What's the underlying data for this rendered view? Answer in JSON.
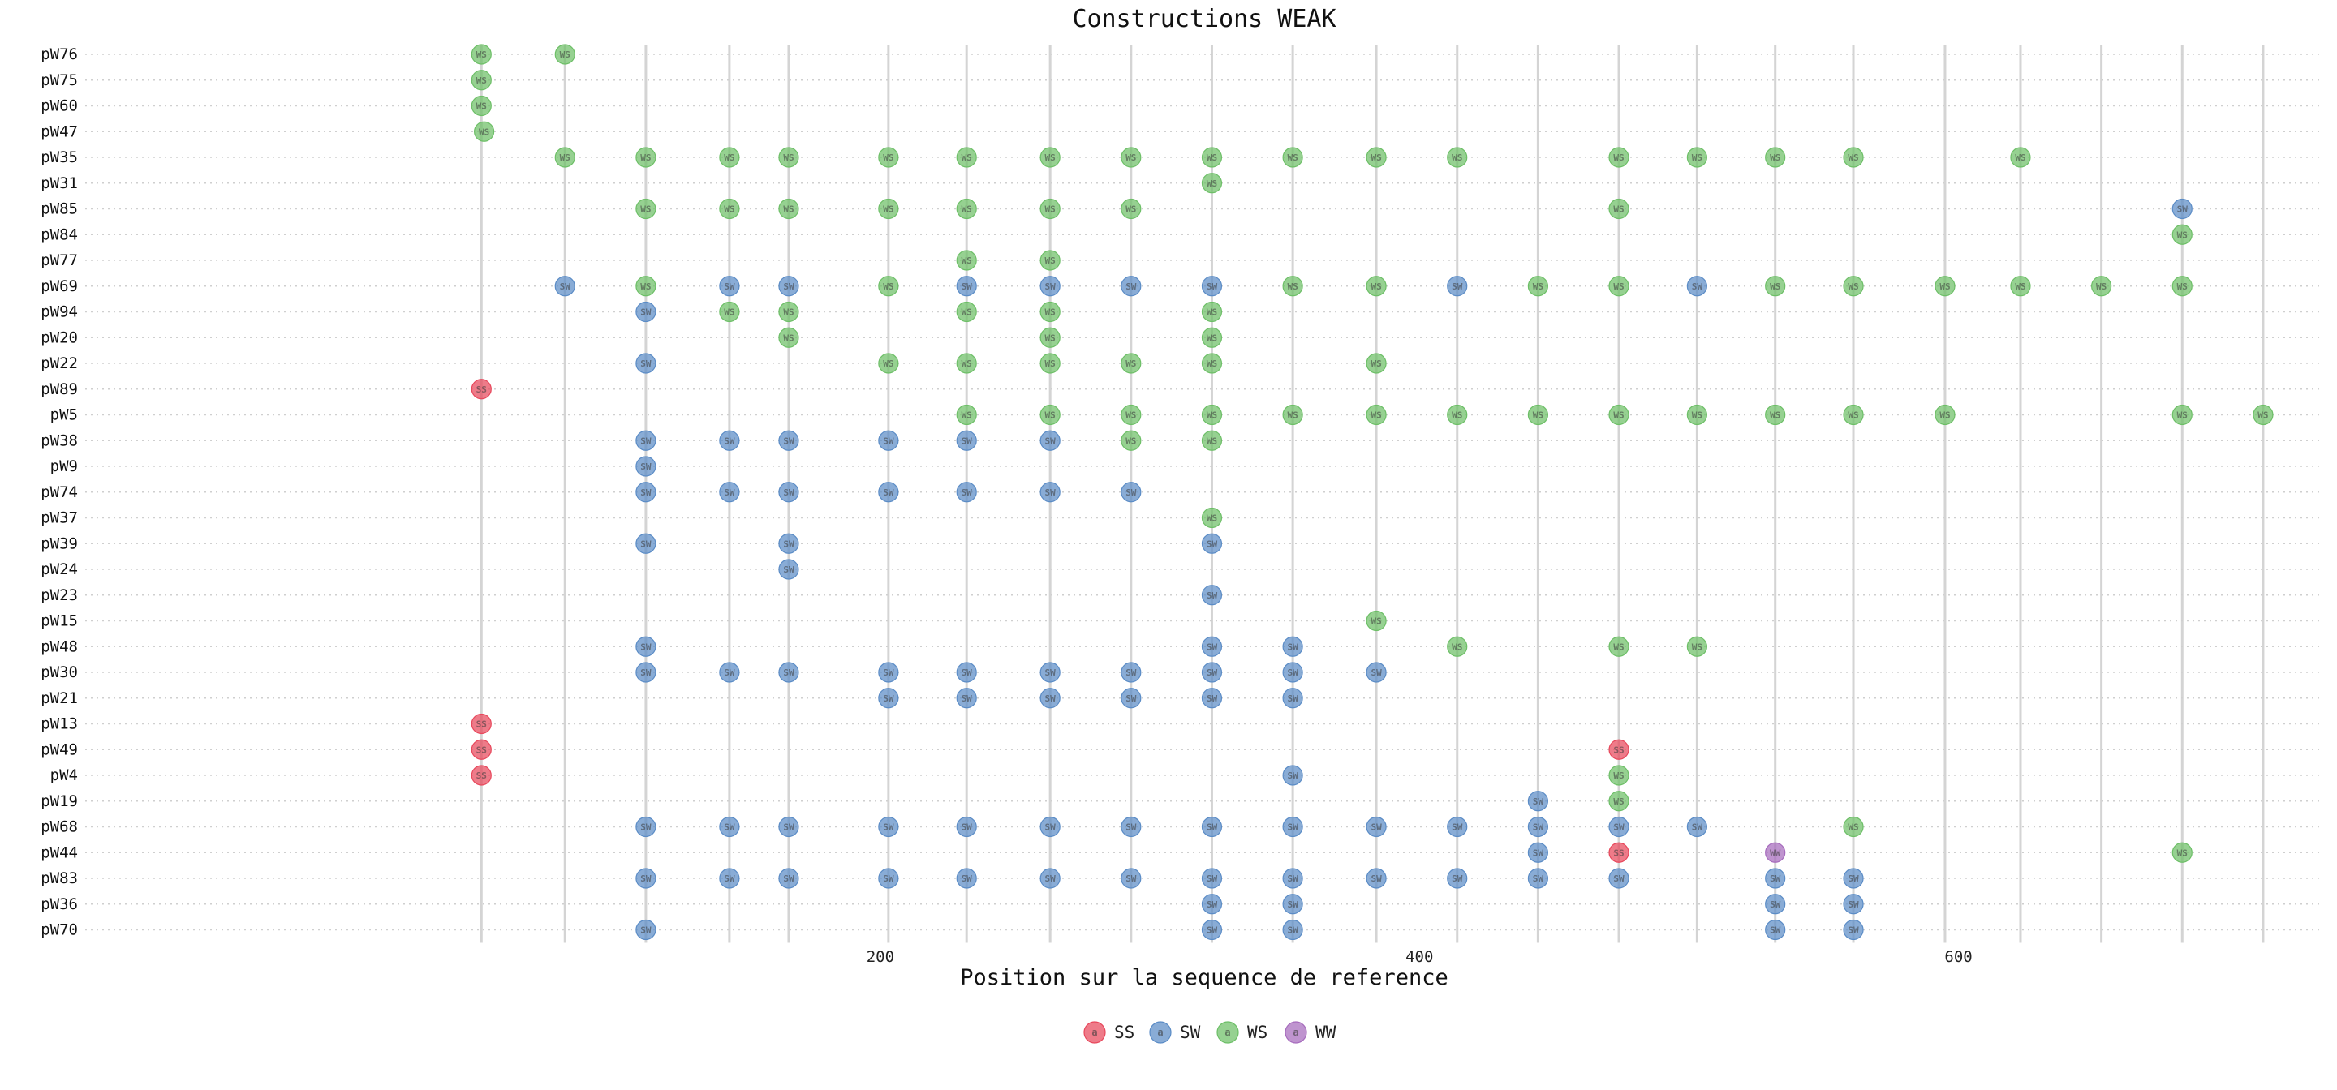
{
  "chart_data": {
    "type": "scatter",
    "title": "Constructions WEAK",
    "xlabel": "Position sur la sequence de reference",
    "ylabel": "",
    "xlim": [
      -95,
      735
    ],
    "xticks": [
      200,
      400,
      600
    ],
    "grid": "vertical lines at point positions, dotted horizontal lines per row",
    "legend_position": "bottom-center",
    "legend": [
      {
        "key": "SS",
        "label": "SS",
        "inner": "a",
        "color": "#e8485c"
      },
      {
        "key": "SW",
        "label": "SW",
        "inner": "a",
        "color": "#5b8cc6"
      },
      {
        "key": "WS",
        "label": "WS",
        "inner": "a",
        "color": "#6dbf67"
      },
      {
        "key": "WW",
        "label": "WW",
        "inner": "a",
        "color": "#a66bbd"
      }
    ],
    "categories": [
      "pW76",
      "pW75",
      "pW60",
      "pW47",
      "pW35",
      "pW31",
      "pW85",
      "pW84",
      "pW77",
      "pW69",
      "pW94",
      "pW20",
      "pW22",
      "pW89",
      "pW5",
      "pW38",
      "pW9",
      "pW74",
      "pW37",
      "pW39",
      "pW24",
      "pW23",
      "pW15",
      "pW48",
      "pW30",
      "pW21",
      "pW13",
      "pW49",
      "pW4",
      "pW19",
      "pW68",
      "pW44",
      "pW83",
      "pW36",
      "pW70"
    ],
    "positions": [
      52,
      83,
      113,
      144,
      166,
      203,
      232,
      263,
      293,
      323,
      353,
      384,
      414,
      444,
      474,
      503,
      532,
      561,
      595,
      623,
      653,
      683,
      713
    ],
    "rows": [
      {
        "name": "pW76",
        "points": [
          [
            52,
            "WS"
          ],
          [
            83,
            "WS"
          ]
        ]
      },
      {
        "name": "pW75",
        "points": [
          [
            52,
            "WS"
          ]
        ]
      },
      {
        "name": "pW60",
        "points": [
          [
            52,
            "WS"
          ]
        ]
      },
      {
        "name": "pW47",
        "points": [
          [
            53,
            "WS"
          ]
        ]
      },
      {
        "name": "pW35",
        "points": [
          [
            83,
            "WS"
          ],
          [
            113,
            "WS"
          ],
          [
            144,
            "WS"
          ],
          [
            166,
            "WS"
          ],
          [
            203,
            "WS"
          ],
          [
            232,
            "WS"
          ],
          [
            263,
            "WS"
          ],
          [
            293,
            "WS"
          ],
          [
            323,
            "WS"
          ],
          [
            353,
            "WS"
          ],
          [
            384,
            "WS"
          ],
          [
            414,
            "WS"
          ],
          [
            474,
            "WS"
          ],
          [
            503,
            "WS"
          ],
          [
            532,
            "WS"
          ],
          [
            561,
            "WS"
          ],
          [
            623,
            "WS"
          ]
        ]
      },
      {
        "name": "pW31",
        "points": [
          [
            323,
            "WS"
          ]
        ]
      },
      {
        "name": "pW85",
        "points": [
          [
            113,
            "WS"
          ],
          [
            144,
            "WS"
          ],
          [
            166,
            "WS"
          ],
          [
            203,
            "WS"
          ],
          [
            232,
            "WS"
          ],
          [
            263,
            "WS"
          ],
          [
            293,
            "WS"
          ],
          [
            474,
            "WS"
          ],
          [
            683,
            "SW"
          ]
        ]
      },
      {
        "name": "pW84",
        "points": [
          [
            683,
            "WS"
          ]
        ]
      },
      {
        "name": "pW77",
        "points": [
          [
            232,
            "WS"
          ],
          [
            263,
            "WS"
          ]
        ]
      },
      {
        "name": "pW69",
        "points": [
          [
            83,
            "SW"
          ],
          [
            113,
            "WS"
          ],
          [
            144,
            "SW"
          ],
          [
            166,
            "SW"
          ],
          [
            203,
            "WS"
          ],
          [
            232,
            "SW"
          ],
          [
            263,
            "SW"
          ],
          [
            293,
            "SW"
          ],
          [
            323,
            "SW"
          ],
          [
            353,
            "WS"
          ],
          [
            384,
            "WS"
          ],
          [
            414,
            "SW"
          ],
          [
            444,
            "WS"
          ],
          [
            474,
            "WS"
          ],
          [
            503,
            "SW"
          ],
          [
            532,
            "WS"
          ],
          [
            561,
            "WS"
          ],
          [
            595,
            "WS"
          ],
          [
            623,
            "WS"
          ],
          [
            653,
            "WS"
          ],
          [
            683,
            "WS"
          ]
        ]
      },
      {
        "name": "pW94",
        "points": [
          [
            113,
            "SW"
          ],
          [
            144,
            "WS"
          ],
          [
            166,
            "WS"
          ],
          [
            232,
            "WS"
          ],
          [
            263,
            "WS"
          ],
          [
            323,
            "WS"
          ]
        ]
      },
      {
        "name": "pW20",
        "points": [
          [
            166,
            "WS"
          ],
          [
            263,
            "WS"
          ],
          [
            323,
            "WS"
          ]
        ]
      },
      {
        "name": "pW22",
        "points": [
          [
            113,
            "SW"
          ],
          [
            203,
            "WS"
          ],
          [
            232,
            "WS"
          ],
          [
            263,
            "WS"
          ],
          [
            293,
            "WS"
          ],
          [
            323,
            "WS"
          ],
          [
            384,
            "WS"
          ]
        ]
      },
      {
        "name": "pW89",
        "points": [
          [
            52,
            "SS"
          ]
        ]
      },
      {
        "name": "pW5",
        "points": [
          [
            232,
            "WS"
          ],
          [
            263,
            "WS"
          ],
          [
            293,
            "WS"
          ],
          [
            323,
            "WS"
          ],
          [
            353,
            "WS"
          ],
          [
            384,
            "WS"
          ],
          [
            414,
            "WS"
          ],
          [
            444,
            "WS"
          ],
          [
            474,
            "WS"
          ],
          [
            503,
            "WS"
          ],
          [
            532,
            "WS"
          ],
          [
            561,
            "WS"
          ],
          [
            595,
            "WS"
          ],
          [
            683,
            "WS"
          ],
          [
            713,
            "WS"
          ]
        ]
      },
      {
        "name": "pW38",
        "points": [
          [
            113,
            "SW"
          ],
          [
            144,
            "SW"
          ],
          [
            166,
            "SW"
          ],
          [
            203,
            "SW"
          ],
          [
            232,
            "SW"
          ],
          [
            263,
            "SW"
          ],
          [
            293,
            "WS"
          ],
          [
            323,
            "WS"
          ]
        ]
      },
      {
        "name": "pW9",
        "points": [
          [
            113,
            "SW"
          ]
        ]
      },
      {
        "name": "pW74",
        "points": [
          [
            113,
            "SW"
          ],
          [
            144,
            "SW"
          ],
          [
            166,
            "SW"
          ],
          [
            203,
            "SW"
          ],
          [
            232,
            "SW"
          ],
          [
            263,
            "SW"
          ],
          [
            293,
            "SW"
          ]
        ]
      },
      {
        "name": "pW37",
        "points": [
          [
            323,
            "WS"
          ]
        ]
      },
      {
        "name": "pW39",
        "points": [
          [
            113,
            "SW"
          ],
          [
            166,
            "SW"
          ],
          [
            323,
            "SW"
          ]
        ]
      },
      {
        "name": "pW24",
        "points": [
          [
            166,
            "SW"
          ]
        ]
      },
      {
        "name": "pW23",
        "points": [
          [
            323,
            "SW"
          ]
        ]
      },
      {
        "name": "pW15",
        "points": [
          [
            384,
            "WS"
          ]
        ]
      },
      {
        "name": "pW48",
        "points": [
          [
            113,
            "SW"
          ],
          [
            323,
            "SW"
          ],
          [
            353,
            "SW"
          ],
          [
            414,
            "WS"
          ],
          [
            474,
            "WS"
          ],
          [
            503,
            "WS"
          ]
        ]
      },
      {
        "name": "pW30",
        "points": [
          [
            113,
            "SW"
          ],
          [
            144,
            "SW"
          ],
          [
            166,
            "SW"
          ],
          [
            203,
            "SW"
          ],
          [
            232,
            "SW"
          ],
          [
            263,
            "SW"
          ],
          [
            293,
            "SW"
          ],
          [
            323,
            "SW"
          ],
          [
            353,
            "SW"
          ],
          [
            384,
            "SW"
          ]
        ]
      },
      {
        "name": "pW21",
        "points": [
          [
            203,
            "SW"
          ],
          [
            232,
            "SW"
          ],
          [
            263,
            "SW"
          ],
          [
            293,
            "SW"
          ],
          [
            323,
            "SW"
          ],
          [
            353,
            "SW"
          ]
        ]
      },
      {
        "name": "pW13",
        "points": [
          [
            52,
            "SS"
          ]
        ]
      },
      {
        "name": "pW49",
        "points": [
          [
            52,
            "SS"
          ],
          [
            474,
            "SS"
          ]
        ]
      },
      {
        "name": "pW4",
        "points": [
          [
            52,
            "SS"
          ],
          [
            353,
            "SW"
          ],
          [
            474,
            "WS"
          ]
        ]
      },
      {
        "name": "pW19",
        "points": [
          [
            444,
            "SW"
          ],
          [
            474,
            "WS"
          ]
        ]
      },
      {
        "name": "pW68",
        "points": [
          [
            113,
            "SW"
          ],
          [
            144,
            "SW"
          ],
          [
            166,
            "SW"
          ],
          [
            203,
            "SW"
          ],
          [
            232,
            "SW"
          ],
          [
            263,
            "SW"
          ],
          [
            293,
            "SW"
          ],
          [
            323,
            "SW"
          ],
          [
            353,
            "SW"
          ],
          [
            384,
            "SW"
          ],
          [
            414,
            "SW"
          ],
          [
            444,
            "SW"
          ],
          [
            474,
            "SW"
          ],
          [
            503,
            "SW"
          ],
          [
            561,
            "WS"
          ]
        ]
      },
      {
        "name": "pW44",
        "points": [
          [
            444,
            "SW"
          ],
          [
            474,
            "SS"
          ],
          [
            532,
            "WW"
          ],
          [
            683,
            "WS"
          ]
        ]
      },
      {
        "name": "pW83",
        "points": [
          [
            113,
            "SW"
          ],
          [
            144,
            "SW"
          ],
          [
            166,
            "SW"
          ],
          [
            203,
            "SW"
          ],
          [
            232,
            "SW"
          ],
          [
            263,
            "SW"
          ],
          [
            293,
            "SW"
          ],
          [
            323,
            "SW"
          ],
          [
            353,
            "SW"
          ],
          [
            384,
            "SW"
          ],
          [
            414,
            "SW"
          ],
          [
            444,
            "SW"
          ],
          [
            474,
            "SW"
          ],
          [
            532,
            "SW"
          ],
          [
            561,
            "SW"
          ]
        ]
      },
      {
        "name": "pW36",
        "points": [
          [
            323,
            "SW"
          ],
          [
            353,
            "SW"
          ],
          [
            532,
            "SW"
          ],
          [
            561,
            "SW"
          ]
        ]
      },
      {
        "name": "pW70",
        "points": [
          [
            113,
            "SW"
          ],
          [
            323,
            "SW"
          ],
          [
            353,
            "SW"
          ],
          [
            532,
            "SW"
          ],
          [
            561,
            "SW"
          ]
        ]
      }
    ]
  }
}
